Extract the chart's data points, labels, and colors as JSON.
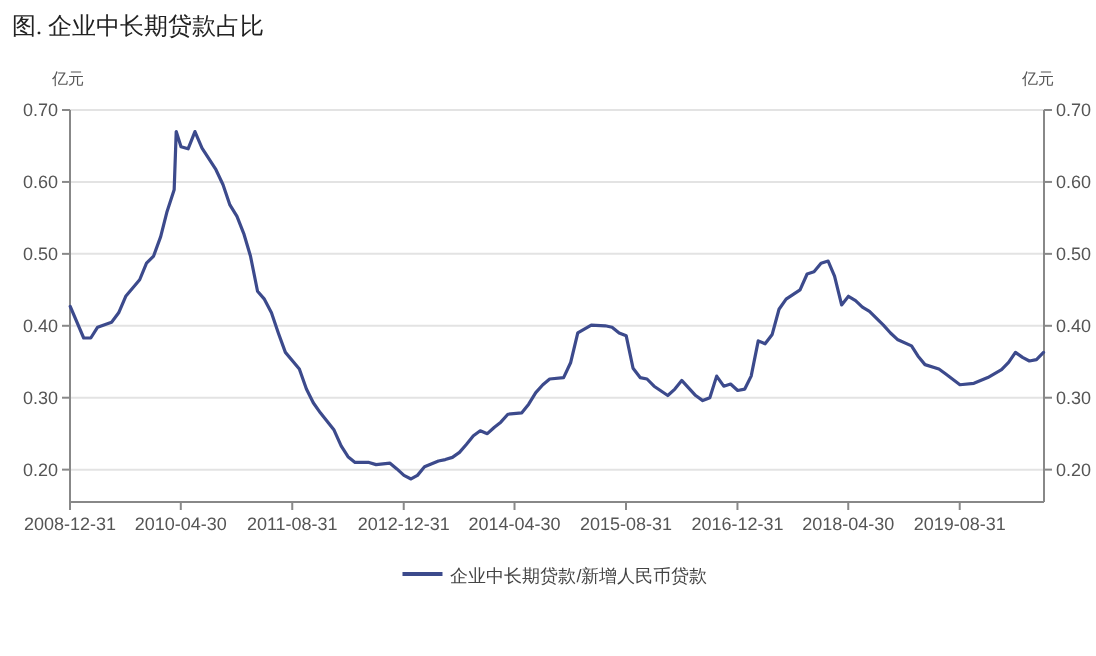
{
  "chart_data": {
    "type": "line",
    "title": "图. 企业中长期贷款占比",
    "ylabel": "亿元",
    "y2label": "亿元",
    "x": [
      "2009-01",
      "2009-03",
      "2009-04",
      "2009-05",
      "2009-07",
      "2009-08",
      "2009-09",
      "2009-11",
      "2009-12",
      "2010-01",
      "2010-02",
      "2010-03",
      "2010-04",
      "2010-04-10",
      "2010-05",
      "2010-06",
      "2010-07",
      "2010-08",
      "2010-10",
      "2010-11",
      "2010-12",
      "2011-01",
      "2011-02",
      "2011-03",
      "2011-04",
      "2011-05",
      "2011-06",
      "2011-07",
      "2011-08",
      "2011-10",
      "2011-11",
      "2011-12",
      "2012-01",
      "2012-03",
      "2012-04",
      "2012-05",
      "2012-06",
      "2012-08",
      "2012-09",
      "2012-11",
      "2012-12",
      "2013-01",
      "2013-02",
      "2013-03",
      "2013-04",
      "2013-06",
      "2013-07",
      "2013-08",
      "2013-09",
      "2013-10",
      "2013-11",
      "2013-12",
      "2014-01",
      "2014-02",
      "2014-03",
      "2014-04",
      "2014-06",
      "2014-07",
      "2014-08",
      "2014-09",
      "2014-10",
      "2014-12",
      "2015-01",
      "2015-02",
      "2015-04",
      "2015-06",
      "2015-07",
      "2015-08",
      "2015-09",
      "2015-10",
      "2015-11",
      "2015-12",
      "2016-01",
      "2016-03",
      "2016-04",
      "2016-05",
      "2016-07",
      "2016-08",
      "2016-09",
      "2016-10",
      "2016-11",
      "2016-12",
      "2017-01",
      "2017-02",
      "2017-03",
      "2017-04",
      "2017-05",
      "2017-06",
      "2017-07",
      "2017-08",
      "2017-10",
      "2017-11",
      "2017-12",
      "2018-01",
      "2018-02",
      "2018-03",
      "2018-04",
      "2018-05",
      "2018-06",
      "2018-07",
      "2018-08",
      "2018-10",
      "2018-11",
      "2018-12",
      "2019-02",
      "2019-03",
      "2019-04",
      "2019-06",
      "2019-07",
      "2019-09",
      "2019-11",
      "2020-01",
      "2020-03",
      "2020-04",
      "2020-05",
      "2020-06",
      "2020-07",
      "2020-08",
      "2020-09"
    ],
    "series": [
      {
        "name": "企业中长期贷款/新增人民币贷款",
        "color": "#3c4a8c",
        "values": [
          0.427,
          0.383,
          0.383,
          0.398,
          0.405,
          0.418,
          0.441,
          0.464,
          0.487,
          0.497,
          0.524,
          0.559,
          0.589,
          0.67,
          0.649,
          0.646,
          0.67,
          0.647,
          0.617,
          0.596,
          0.568,
          0.552,
          0.527,
          0.497,
          0.448,
          0.437,
          0.418,
          0.39,
          0.363,
          0.34,
          0.312,
          0.293,
          0.279,
          0.255,
          0.233,
          0.218,
          0.21,
          0.21,
          0.207,
          0.209,
          0.201,
          0.192,
          0.187,
          0.192,
          0.204,
          0.212,
          0.214,
          0.217,
          0.224,
          0.235,
          0.247,
          0.254,
          0.25,
          0.259,
          0.266,
          0.277,
          0.279,
          0.291,
          0.307,
          0.318,
          0.326,
          0.328,
          0.349,
          0.39,
          0.401,
          0.4,
          0.398,
          0.39,
          0.386,
          0.341,
          0.328,
          0.326,
          0.316,
          0.303,
          0.312,
          0.324,
          0.303,
          0.296,
          0.3,
          0.33,
          0.316,
          0.319,
          0.31,
          0.312,
          0.33,
          0.379,
          0.375,
          0.388,
          0.423,
          0.437,
          0.45,
          0.472,
          0.475,
          0.487,
          0.49,
          0.469,
          0.429,
          0.441,
          0.435,
          0.426,
          0.42,
          0.401,
          0.39,
          0.381,
          0.372,
          0.358,
          0.346,
          0.34,
          0.333,
          0.318,
          0.32,
          0.328,
          0.339,
          0.349,
          0.363,
          0.356,
          0.351,
          0.353,
          0.363
        ]
      }
    ],
    "xlim": [
      "2008-12-31",
      "2020-09-03"
    ],
    "xticks": [
      "2008-12-31",
      "2010-04-30",
      "2011-08-31",
      "2012-12-31",
      "2014-04-30",
      "2015-08-31",
      "2016-12-31",
      "2018-04-30",
      "2019-08-31"
    ],
    "ylim": [
      0.155,
      0.7
    ],
    "yticks": [
      {
        "value": 0.2,
        "label": "0.20"
      },
      {
        "value": 0.3,
        "label": "0.30"
      },
      {
        "value": 0.4,
        "label": "0.40"
      },
      {
        "value": 0.5,
        "label": "0.50"
      },
      {
        "value": 0.6,
        "label": "0.60"
      },
      {
        "value": 0.7,
        "label": "0.70"
      }
    ],
    "y2lim": [
      0.155,
      0.7
    ],
    "y2ticks": [
      {
        "value": 0.2,
        "label": "0.20"
      },
      {
        "value": 0.3,
        "label": "0.30"
      },
      {
        "value": 0.4,
        "label": "0.40"
      },
      {
        "value": 0.5,
        "label": "0.50"
      },
      {
        "value": 0.6,
        "label": "0.60"
      },
      {
        "value": 0.7,
        "label": "0.70"
      }
    ],
    "grid": "y",
    "legend": "bottom"
  }
}
